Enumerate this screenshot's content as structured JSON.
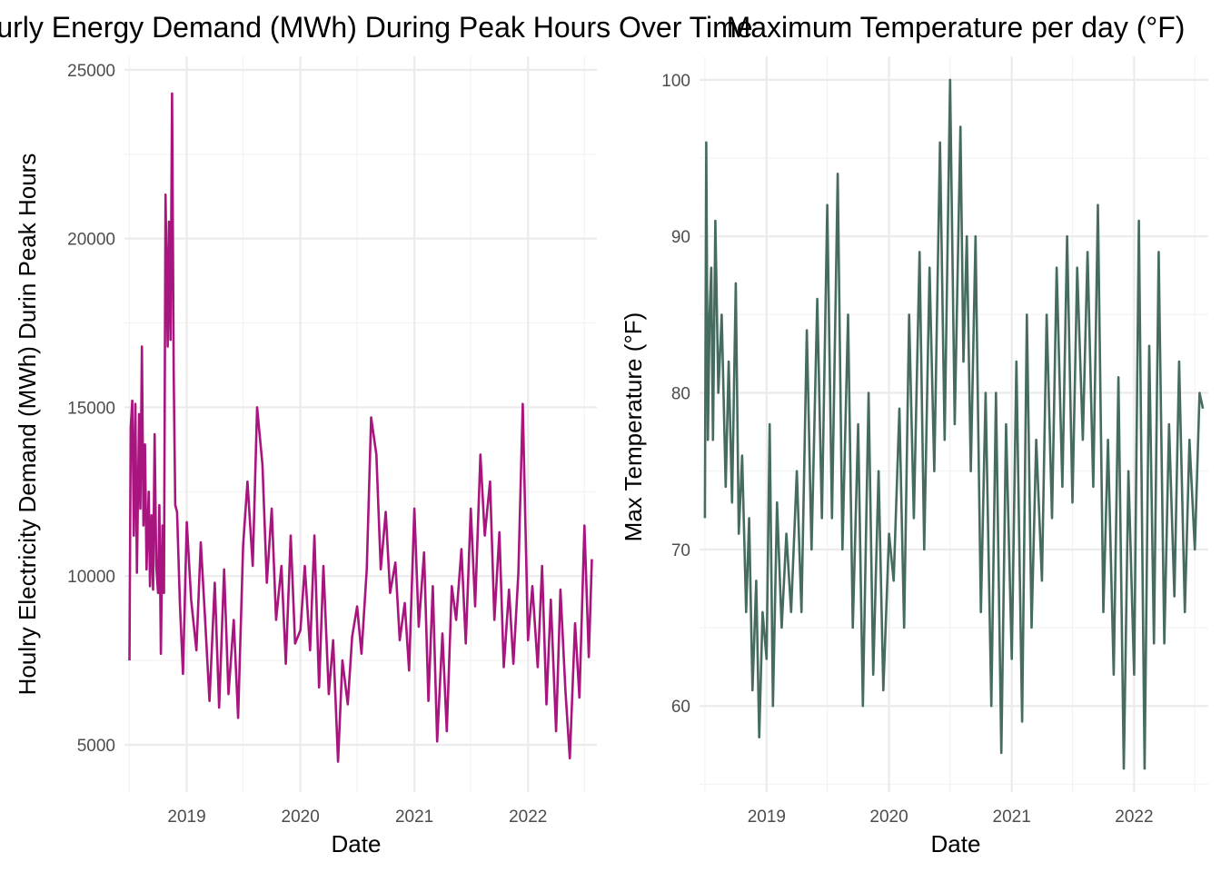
{
  "chart_data": [
    {
      "type": "line",
      "title": "Hourly Energy Demand (MWh) During Peak Hours Over Time",
      "xlabel": "Date",
      "ylabel": "Houlry Electricity Demand (MWh) Durin Peak Hours",
      "xlim": [
        "2018-06-15",
        "2022-08-10"
      ],
      "ylim": [
        3600,
        25400
      ],
      "x_ticks": [
        "2019",
        "2020",
        "2021",
        "2022"
      ],
      "y_ticks": [
        5000,
        10000,
        15000,
        20000,
        25000
      ],
      "line_color": "#a9157e",
      "grid": true,
      "series": [
        {
          "x": [
            "2018-07-01",
            "2018-07-05",
            "2018-07-10",
            "2018-07-15",
            "2018-07-20",
            "2018-07-25",
            "2018-08-01",
            "2018-08-05",
            "2018-08-10",
            "2018-08-15",
            "2018-08-20",
            "2018-08-25",
            "2018-09-01",
            "2018-09-05",
            "2018-09-10",
            "2018-09-15",
            "2018-09-20",
            "2018-09-25",
            "2018-10-01",
            "2018-10-05",
            "2018-10-10",
            "2018-10-15",
            "2018-10-20",
            "2018-10-25",
            "2018-11-01",
            "2018-11-05",
            "2018-11-10",
            "2018-11-15",
            "2018-11-20",
            "2018-11-25",
            "2018-12-01",
            "2018-12-10",
            "2018-12-20",
            "2019-01-01",
            "2019-01-15",
            "2019-02-01",
            "2019-02-15",
            "2019-03-01",
            "2019-03-15",
            "2019-04-01",
            "2019-04-15",
            "2019-05-01",
            "2019-05-15",
            "2019-06-01",
            "2019-06-15",
            "2019-07-01",
            "2019-07-15",
            "2019-08-01",
            "2019-08-15",
            "2019-09-01",
            "2019-09-15",
            "2019-10-01",
            "2019-10-15",
            "2019-11-01",
            "2019-11-15",
            "2019-12-01",
            "2019-12-15",
            "2020-01-01",
            "2020-01-15",
            "2020-02-01",
            "2020-02-15",
            "2020-03-01",
            "2020-03-15",
            "2020-04-01",
            "2020-04-15",
            "2020-05-01",
            "2020-05-15",
            "2020-06-01",
            "2020-06-15",
            "2020-07-01",
            "2020-07-15",
            "2020-08-01",
            "2020-08-15",
            "2020-09-01",
            "2020-09-15",
            "2020-10-01",
            "2020-10-15",
            "2020-11-01",
            "2020-11-15",
            "2020-12-01",
            "2020-12-15",
            "2021-01-01",
            "2021-01-15",
            "2021-02-01",
            "2021-02-15",
            "2021-03-01",
            "2021-03-15",
            "2021-04-01",
            "2021-04-15",
            "2021-05-01",
            "2021-05-15",
            "2021-06-01",
            "2021-06-15",
            "2021-07-01",
            "2021-07-15",
            "2021-08-01",
            "2021-08-15",
            "2021-09-01",
            "2021-09-15",
            "2021-10-01",
            "2021-10-15",
            "2021-11-01",
            "2021-11-15",
            "2021-12-01",
            "2021-12-15",
            "2022-01-01",
            "2022-01-15",
            "2022-02-01",
            "2022-02-15",
            "2022-03-01",
            "2022-03-15",
            "2022-04-01",
            "2022-04-15",
            "2022-05-01",
            "2022-05-15",
            "2022-06-01",
            "2022-06-15",
            "2022-07-01",
            "2022-07-15",
            "2022-07-25"
          ],
          "values": [
            7500,
            14400,
            15200,
            11200,
            15100,
            10100,
            14800,
            12000,
            16800,
            11500,
            13900,
            10200,
            12500,
            9700,
            11800,
            9600,
            14200,
            10300,
            9500,
            12100,
            7700,
            11500,
            9500,
            21300,
            16800,
            20500,
            17000,
            24300,
            16000,
            12100,
            11900,
            9200,
            7100,
            11600,
            9300,
            7800,
            11000,
            8700,
            6300,
            9800,
            6100,
            10200,
            6500,
            8700,
            5800,
            10900,
            12800,
            10300,
            15000,
            13300,
            9800,
            12000,
            8700,
            10300,
            7400,
            11200,
            8000,
            8400,
            10300,
            7800,
            11200,
            6700,
            10300,
            6500,
            8100,
            4500,
            7500,
            6200,
            8200,
            9100,
            7700,
            10200,
            14700,
            13600,
            10200,
            11900,
            9500,
            10400,
            8100,
            9200,
            7200,
            12000,
            8500,
            10700,
            6300,
            9700,
            5100,
            8300,
            5400,
            9700,
            8700,
            10800,
            8000,
            12000,
            9100,
            13600,
            11200,
            12800,
            8700,
            11300,
            7300,
            9600,
            7400,
            10100,
            15100,
            8100,
            9700,
            7300,
            10300,
            6200,
            9300,
            5400,
            9600,
            6600,
            4600,
            8600,
            6400,
            11500,
            7600,
            10500
          ]
        }
      ]
    },
    {
      "type": "line",
      "title": "Maximum Temperature per day (°F)",
      "xlabel": "Date",
      "ylabel": "Max Temperature (°F)",
      "xlim": [
        "2018-06-15",
        "2022-08-10"
      ],
      "ylim": [
        54.5,
        101.5
      ],
      "x_ticks": [
        "2019",
        "2020",
        "2021",
        "2022"
      ],
      "y_ticks": [
        60,
        70,
        80,
        90,
        100
      ],
      "line_color": "#466c61",
      "grid": true,
      "series": [
        {
          "x": [
            "2018-07-01",
            "2018-07-05",
            "2018-07-10",
            "2018-07-15",
            "2018-07-20",
            "2018-07-25",
            "2018-08-01",
            "2018-08-10",
            "2018-08-20",
            "2018-09-01",
            "2018-09-10",
            "2018-09-20",
            "2018-10-01",
            "2018-10-10",
            "2018-10-20",
            "2018-11-01",
            "2018-11-10",
            "2018-11-20",
            "2018-12-01",
            "2018-12-10",
            "2018-12-20",
            "2019-01-01",
            "2019-01-10",
            "2019-01-20",
            "2019-02-01",
            "2019-02-15",
            "2019-03-01",
            "2019-03-15",
            "2019-04-01",
            "2019-04-15",
            "2019-05-01",
            "2019-05-15",
            "2019-06-01",
            "2019-06-15",
            "2019-07-01",
            "2019-07-15",
            "2019-08-01",
            "2019-08-15",
            "2019-09-01",
            "2019-09-15",
            "2019-10-01",
            "2019-10-15",
            "2019-11-01",
            "2019-11-15",
            "2019-12-01",
            "2019-12-15",
            "2020-01-01",
            "2020-01-15",
            "2020-02-01",
            "2020-02-15",
            "2020-03-01",
            "2020-03-15",
            "2020-04-01",
            "2020-04-15",
            "2020-05-01",
            "2020-05-15",
            "2020-06-01",
            "2020-06-15",
            "2020-07-01",
            "2020-07-15",
            "2020-08-01",
            "2020-08-10",
            "2020-08-20",
            "2020-09-01",
            "2020-09-15",
            "2020-10-01",
            "2020-10-15",
            "2020-11-01",
            "2020-11-15",
            "2020-12-01",
            "2020-12-15",
            "2021-01-01",
            "2021-01-15",
            "2021-02-01",
            "2021-02-15",
            "2021-03-01",
            "2021-03-15",
            "2021-04-01",
            "2021-04-15",
            "2021-05-01",
            "2021-05-15",
            "2021-06-01",
            "2021-06-15",
            "2021-07-01",
            "2021-07-15",
            "2021-08-01",
            "2021-08-15",
            "2021-09-01",
            "2021-09-15",
            "2021-10-01",
            "2021-10-15",
            "2021-11-01",
            "2021-11-15",
            "2021-12-01",
            "2021-12-15",
            "2022-01-01",
            "2022-01-15",
            "2022-02-01",
            "2022-02-15",
            "2022-03-01",
            "2022-03-15",
            "2022-04-01",
            "2022-04-15",
            "2022-05-01",
            "2022-05-15",
            "2022-06-01",
            "2022-06-15",
            "2022-07-01",
            "2022-07-15",
            "2022-07-25"
          ],
          "values": [
            72,
            96,
            77,
            85,
            88,
            77,
            91,
            80,
            85,
            74,
            82,
            73,
            87,
            71,
            76,
            66,
            72,
            61,
            68,
            58,
            66,
            63,
            78,
            60,
            73,
            65,
            71,
            66,
            75,
            66,
            84,
            70,
            86,
            72,
            92,
            72,
            94,
            70,
            85,
            65,
            78,
            60,
            80,
            62,
            75,
            61,
            71,
            68,
            79,
            65,
            85,
            72,
            89,
            70,
            88,
            75,
            96,
            77,
            100,
            78,
            97,
            82,
            90,
            75,
            90,
            66,
            80,
            60,
            80,
            57,
            78,
            63,
            82,
            59,
            85,
            65,
            77,
            68,
            85,
            72,
            88,
            74,
            90,
            73,
            88,
            77,
            89,
            74,
            92,
            66,
            77,
            62,
            81,
            56,
            75,
            62,
            91,
            56,
            83,
            64,
            89,
            64,
            78,
            67,
            82,
            66,
            77,
            70,
            80,
            79
          ]
        }
      ]
    }
  ]
}
